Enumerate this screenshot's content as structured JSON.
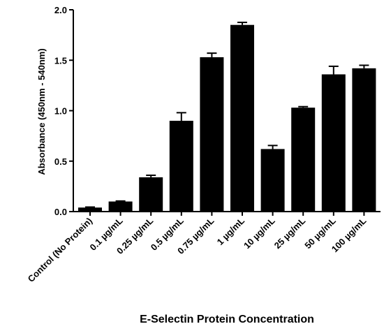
{
  "chart_data": {
    "type": "bar",
    "title": "",
    "xlabel": "E-Selectin Protein Concentration",
    "ylabel": "Absorbance (450nm - 540nm)",
    "ylim": [
      0,
      2.0
    ],
    "yticks": [
      "0.0",
      "0.5",
      "1.0",
      "1.5",
      "2.0"
    ],
    "ytick_values": [
      0,
      0.5,
      1.0,
      1.5,
      2.0
    ],
    "categories": [
      "Control (No Protein)",
      "0.1 µg/mL",
      "0.25 µg/mL",
      "0.5 µg/mL",
      "0.75 µg/mL",
      "1 µg/mL",
      "10 µg/mL",
      "25 µg/mL",
      "50 µg/mL",
      "100 µg/mL"
    ],
    "values": [
      0.04,
      0.1,
      0.34,
      0.9,
      1.53,
      1.85,
      0.62,
      1.03,
      1.36,
      1.42
    ],
    "errors": [
      0.005,
      0.005,
      0.02,
      0.08,
      0.04,
      0.025,
      0.035,
      0.01,
      0.08,
      0.03
    ],
    "bar_color": "#000000",
    "grid": false,
    "legend": "none"
  }
}
